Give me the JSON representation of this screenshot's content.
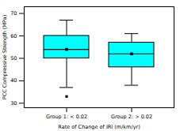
{
  "chart_data": {
    "type": "box",
    "xlabel": "Rate of Change of IRI (m/km/yr)",
    "ylabel": "PCC Compressive Strength (MPa)",
    "categories": [
      "Group 1: < 0.02",
      "Group 2: > 0.02"
    ],
    "median": [
      54,
      52
    ],
    "q1": [
      50,
      46
    ],
    "q3": [
      60,
      57
    ],
    "whisker_low": [
      37,
      38
    ],
    "whisker_high": [
      67,
      61
    ],
    "outliers": [
      [
        33
      ],
      []
    ],
    "color": "#00FFFF",
    "ylim": [
      28,
      73
    ],
    "yticks": [
      30,
      40,
      50,
      60,
      70
    ],
    "grid": false
  }
}
